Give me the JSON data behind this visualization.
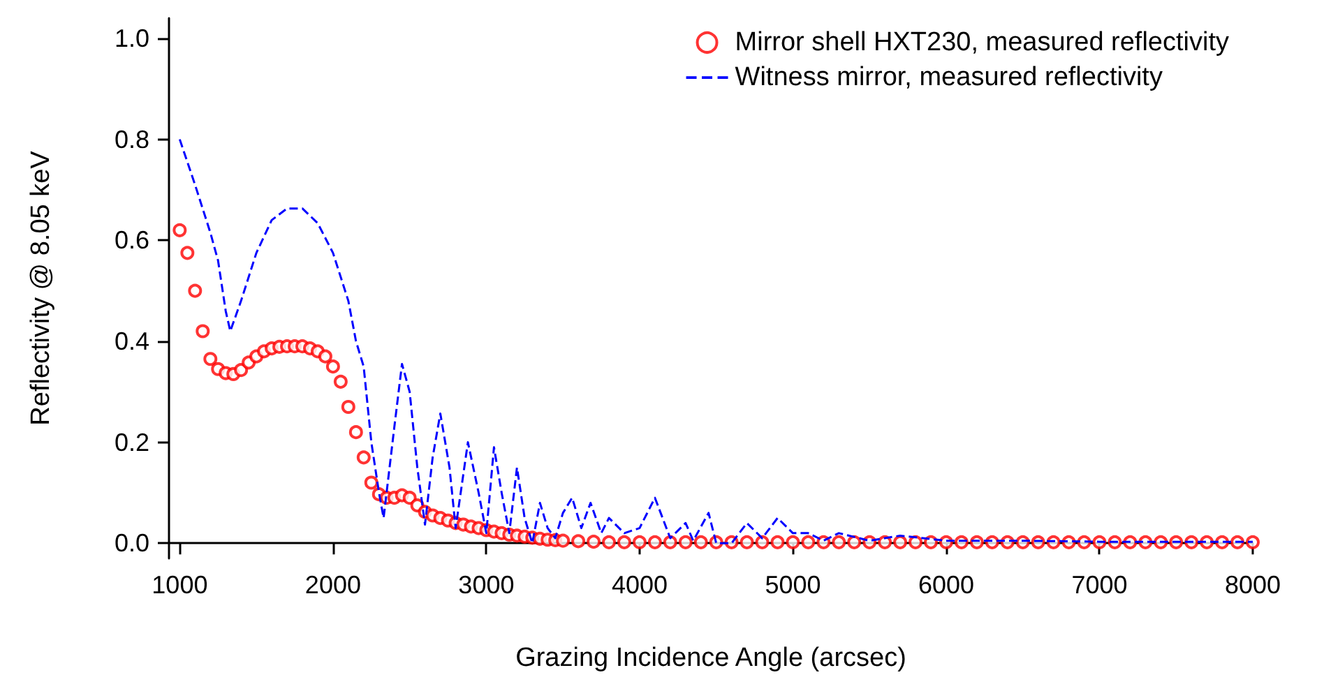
{
  "chart_data": {
    "type": "line",
    "xlabel": "Grazing Incidence Angle (arcsec)",
    "ylabel": "Reflectivity @ 8.05 keV",
    "xlim": [
      930,
      8000
    ],
    "xticks": [
      1000,
      2000,
      3000,
      4000,
      5000,
      6000,
      7000,
      8000
    ],
    "ylim": [
      -0.03,
      1.04
    ],
    "yticks": [
      {
        "value": 0,
        "label": "0.0"
      },
      0.2,
      0.4,
      0.6,
      0.8,
      {
        "value": 1,
        "label": "1.0"
      }
    ],
    "grid": false,
    "legend": "top right",
    "series": [
      {
        "name": "Mirror shell HXT230, measured reflectivity",
        "type": "scatter",
        "marker": "circle",
        "color": "#ff0000",
        "x": [
          1000,
          1050,
          1100,
          1150,
          1200,
          1250,
          1300,
          1350,
          1400,
          1450,
          1500,
          1550,
          1600,
          1650,
          1700,
          1750,
          1800,
          1850,
          1900,
          1950,
          2000,
          2050,
          2100,
          2150,
          2200,
          2250,
          2300,
          2350,
          2400,
          2450,
          2500,
          2550,
          2600,
          2650,
          2700,
          2750,
          2800,
          2850,
          2900,
          2950,
          3000,
          3050,
          3100,
          3150,
          3200,
          3250,
          3300,
          3350,
          3400,
          3450,
          3500,
          3600,
          3700,
          3800,
          3900,
          4000,
          4100,
          4200,
          4300,
          4400,
          4500,
          4600,
          4700,
          4800,
          4900,
          5000,
          5100,
          5200,
          5300,
          5400,
          5500,
          5600,
          5700,
          5800,
          5900,
          6000,
          6100,
          6200,
          6300,
          6400,
          6500,
          6600,
          6700,
          6800,
          6900,
          7000,
          7100,
          7200,
          7300,
          7400,
          7500,
          7600,
          7700,
          7800,
          7900,
          8000
        ],
        "values": [
          0.62,
          0.575,
          0.5,
          0.42,
          0.365,
          0.345,
          0.337,
          0.335,
          0.343,
          0.358,
          0.37,
          0.38,
          0.386,
          0.389,
          0.39,
          0.39,
          0.39,
          0.386,
          0.38,
          0.37,
          0.35,
          0.32,
          0.27,
          0.22,
          0.17,
          0.12,
          0.097,
          0.09,
          0.09,
          0.095,
          0.09,
          0.075,
          0.062,
          0.055,
          0.05,
          0.045,
          0.04,
          0.037,
          0.033,
          0.03,
          0.026,
          0.023,
          0.02,
          0.017,
          0.015,
          0.013,
          0.011,
          0.009,
          0.007,
          0.006,
          0.005,
          0.004,
          0.003,
          0.002,
          0.002,
          0.002,
          0.002,
          0.002,
          0.002,
          0.002,
          0.002,
          0.002,
          0.002,
          0.002,
          0.002,
          0.002,
          0.002,
          0.002,
          0.002,
          0.002,
          0.002,
          0.002,
          0.002,
          0.002,
          0.002,
          0.002,
          0.002,
          0.002,
          0.002,
          0.002,
          0.002,
          0.002,
          0.002,
          0.002,
          0.002,
          0.002,
          0.002,
          0.002,
          0.002,
          0.002,
          0.002,
          0.002,
          0.002,
          0.002,
          0.002,
          0.002
        ]
      },
      {
        "name": "Witness mirror, measured reflectivity",
        "marker": "none",
        "line_style": "dashed",
        "color": "#0000ff",
        "x": [
          1000,
          1100,
          1200,
          1250,
          1300,
          1330,
          1400,
          1500,
          1600,
          1700,
          1800,
          1900,
          2000,
          2100,
          2150,
          2200,
          2250,
          2300,
          2330,
          2400,
          2450,
          2500,
          2550,
          2600,
          2650,
          2700,
          2760,
          2800,
          2880,
          2950,
          3000,
          3050,
          3100,
          3150,
          3200,
          3250,
          3300,
          3350,
          3400,
          3450,
          3500,
          3560,
          3620,
          3680,
          3750,
          3800,
          3900,
          4000,
          4100,
          4150,
          4200,
          4300,
          4350,
          4450,
          4500,
          4600,
          4700,
          4800,
          4900,
          5000,
          5100,
          5200,
          5300,
          5500,
          5700,
          6000,
          6500,
          7000,
          8000
        ],
        "values": [
          0.8,
          0.71,
          0.615,
          0.56,
          0.46,
          0.42,
          0.48,
          0.575,
          0.64,
          0.663,
          0.663,
          0.634,
          0.575,
          0.48,
          0.4,
          0.35,
          0.2,
          0.1,
          0.05,
          0.23,
          0.355,
          0.3,
          0.15,
          0.037,
          0.17,
          0.257,
          0.15,
          0.03,
          0.2,
          0.1,
          0.02,
          0.19,
          0.1,
          0.02,
          0.15,
          0.05,
          0.0,
          0.08,
          0.03,
          0.01,
          0.06,
          0.09,
          0.03,
          0.08,
          0.02,
          0.05,
          0.02,
          0.03,
          0.09,
          0.05,
          0.01,
          0.04,
          0.005,
          0.06,
          0.0,
          0.0,
          0.04,
          0.01,
          0.05,
          0.02,
          0.02,
          0.005,
          0.02,
          0.005,
          0.015,
          0.005,
          0.005,
          0.003,
          0.003
        ]
      }
    ]
  }
}
